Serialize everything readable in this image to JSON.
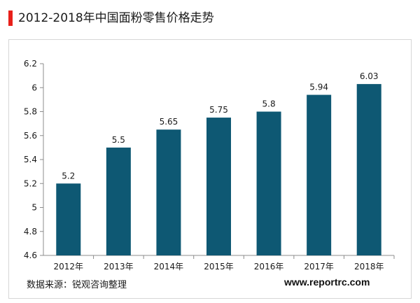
{
  "header": {
    "title": "2012-2018年中国面粉零售价格走势",
    "accent_color": "#e8201a"
  },
  "footer": {
    "source": "数据来源：锐观咨询整理",
    "website": "www.reportrc.com"
  },
  "chart_data": {
    "type": "bar",
    "title": "2012-2018年中国面粉零售价格走势",
    "xlabel": "",
    "ylabel": "",
    "categories": [
      "2012年",
      "2013年",
      "2014年",
      "2015年",
      "2016年",
      "2017年",
      "2018年"
    ],
    "values": [
      5.2,
      5.5,
      5.65,
      5.75,
      5.8,
      5.94,
      6.03
    ],
    "value_labels": [
      "5.2",
      "5.5",
      "5.65",
      "5.75",
      "5.8",
      "5.94",
      "6.03"
    ],
    "ylim": [
      4.6,
      6.2
    ],
    "yticks": [
      4.6,
      4.8,
      5,
      5.2,
      5.4,
      5.6,
      5.8,
      6,
      6.2
    ],
    "ytick_labels": [
      "4.6",
      "4.8",
      "5",
      "5.2",
      "5.4",
      "5.6",
      "5.8",
      "6",
      "6.2"
    ],
    "bar_color": "#0e5873",
    "grid": false,
    "legend": "none"
  }
}
